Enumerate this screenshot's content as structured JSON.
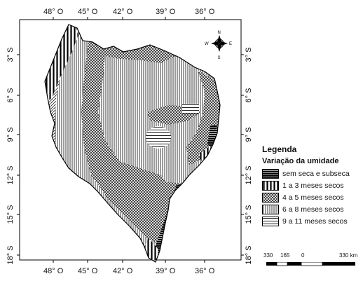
{
  "map": {
    "region": "Nordeste do Brasil",
    "ticks_top": [
      "48° O",
      "45° O",
      "42° O",
      "39° O",
      "36° O"
    ],
    "ticks_bottom": [
      "48° O",
      "45° O",
      "42° O",
      "39° O",
      "36° O"
    ],
    "ticks_left": [
      "3° S",
      "6° S",
      "9° S",
      "12° S",
      "15° S",
      "18° S"
    ],
    "ticks_right": [
      "3° S",
      "6° S",
      "9° S",
      "12° S",
      "15° S",
      "18° S"
    ],
    "compass": {
      "n": "N",
      "s": "S",
      "e": "E",
      "w": "W"
    }
  },
  "legend": {
    "title": "Legenda",
    "subtitle": "Variação da umidade",
    "items": [
      {
        "label": "sem seca e subseca",
        "pattern": "dense-horizontal"
      },
      {
        "label": "1 a 3 meses secos",
        "pattern": "vertical-bold"
      },
      {
        "label": "4 a 5 meses secos",
        "pattern": "crosshatch"
      },
      {
        "label": "6 a 8 meses secos",
        "pattern": "vertical-fine"
      },
      {
        "label": "9 a 11 meses secos",
        "pattern": "horizontal"
      }
    ]
  },
  "scale": {
    "labels": [
      "330",
      "165",
      "0",
      "330 km"
    ]
  }
}
